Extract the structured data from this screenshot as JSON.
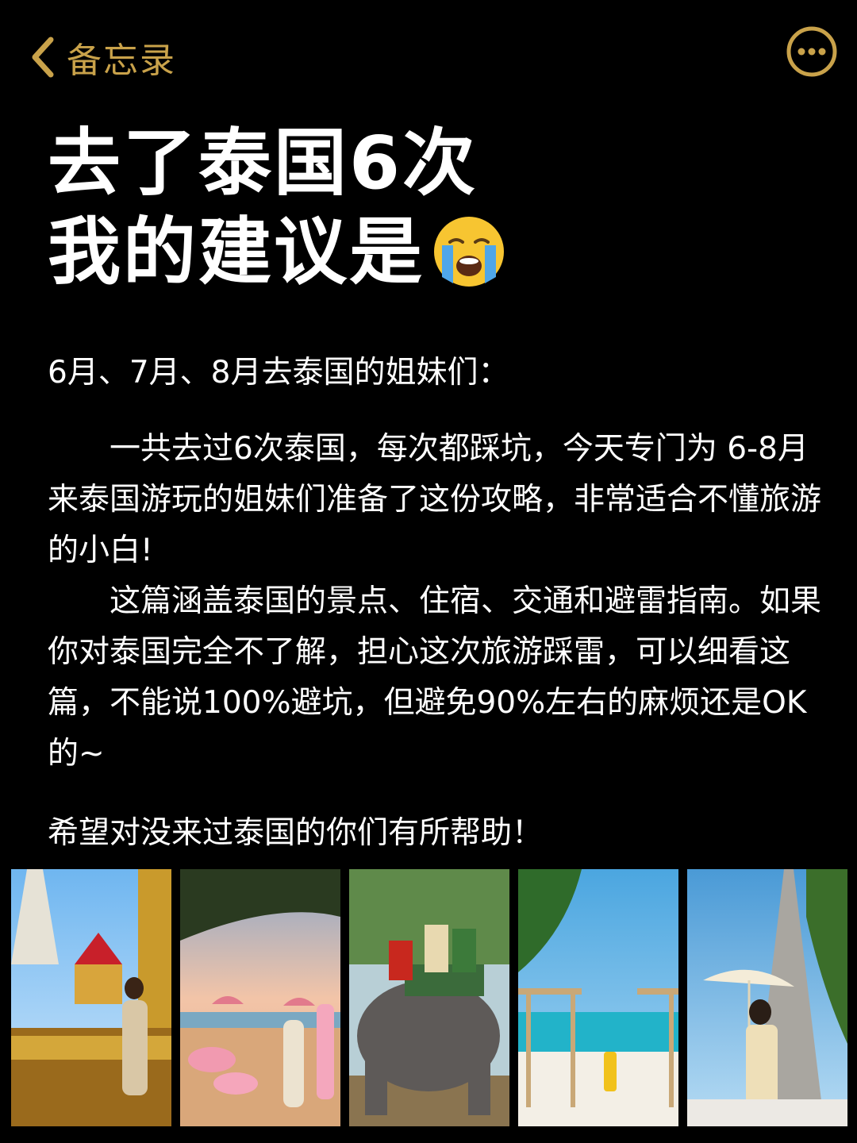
{
  "topbar": {
    "back_label": "备忘录",
    "back_icon": "chevron-left-icon",
    "more_icon": "more-horizontal-circle-icon",
    "accent_color": "#c9a24a"
  },
  "title": {
    "line1": "去了泰国6次",
    "line2": "我的建议是",
    "emoji": "loudly-crying-face-emoji"
  },
  "content": {
    "greeting": "6月、7月、8月去泰国的姐妹们：",
    "paragraph1": "一共去过6次泰国，每次都踩坑，今天专门为 6-8月来泰国游玩的姐妹们准备了这份攻略，非常适合不懂旅游的小白!",
    "paragraph2": "这篇涵盖泰国的景点、住宿、交通和避雷指南。如果你对泰国完全不了解，担心这次旅游踩雷，可以细看这篇，不能说100%避坑，但避免90%左右的麻烦还是OK的~",
    "closing": "希望对没来过泰国的你们有所帮助！"
  },
  "photos": [
    {
      "name": "grand-palace-photo"
    },
    {
      "name": "beach-bar-photo"
    },
    {
      "name": "elephant-ride-photo"
    },
    {
      "name": "beach-cabana-photo"
    },
    {
      "name": "wat-arun-photo"
    }
  ]
}
